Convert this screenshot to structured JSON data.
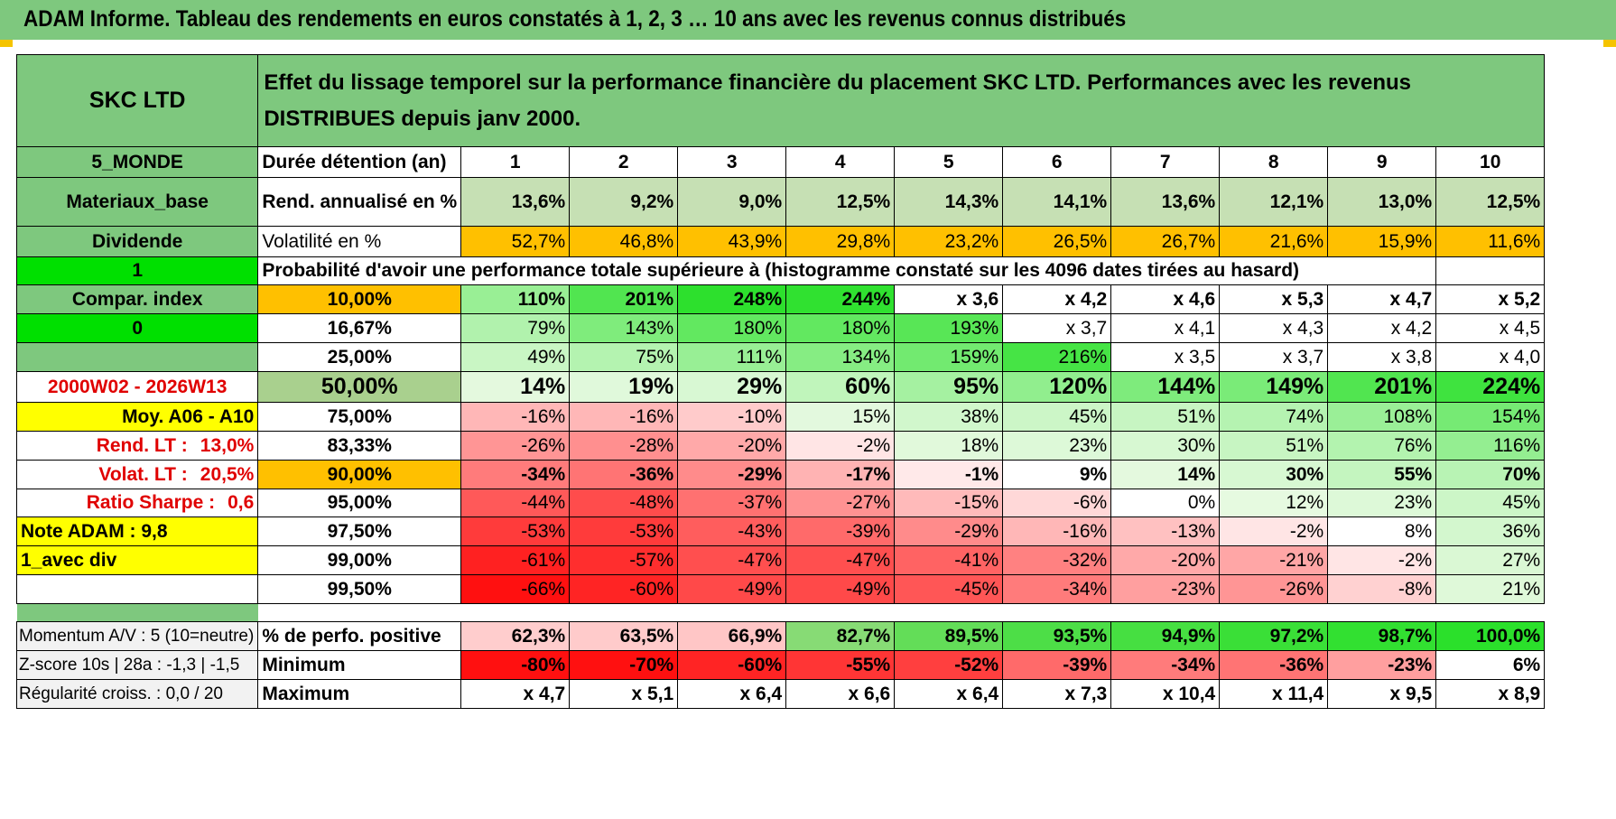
{
  "title": "ADAM Informe. Tableau des rendements en euros constatés à 1, 2, 3 … 10 ans avec les revenus connus distribués",
  "colors": {
    "green_header": "#7ec87e",
    "bright_green": "#00e000",
    "yellow": "#ffff00",
    "orange": "#ffc000",
    "red_text": "#e00000"
  },
  "header": {
    "fund": "SKC LTD",
    "description": "Effet du lissage temporel sur la performance financière du placement SKC LTD. Performances avec les revenus DISTRIBUES depuis janv 2000."
  },
  "left": {
    "zone": "5_MONDE",
    "sector": "Materiaux_base",
    "income": "Dividende",
    "flag1": "1",
    "compar": "Compar. index",
    "flag0": "0",
    "period": "2000W02 - 2026W13",
    "moy": "Moy. A06 - A10",
    "rend_lt_label": "Rend. LT :",
    "rend_lt_value": "13,0%",
    "volat_lt_label": "Volat. LT :",
    "volat_lt_value": "20,5%",
    "sharpe_label": "Ratio Sharpe :",
    "sharpe_value": "0,6",
    "note": "Note ADAM : 9,8",
    "avec_div": "1_avec div"
  },
  "rows_label": {
    "duree": "Durée détention (an)",
    "rend": "Rend. annualisé en %",
    "vol": "Volatilité en %",
    "proba": "Probabilité d'avoir une performance totale supérieure à (histogramme constaté sur les 4096 dates tirées au hasard)"
  },
  "years": [
    "1",
    "2",
    "3",
    "4",
    "5",
    "6",
    "7",
    "8",
    "9",
    "10"
  ],
  "rend": [
    "13,6%",
    "9,2%",
    "9,0%",
    "12,5%",
    "14,3%",
    "14,1%",
    "13,6%",
    "12,1%",
    "13,0%",
    "12,5%"
  ],
  "vol": [
    "52,7%",
    "46,8%",
    "43,9%",
    "29,8%",
    "23,2%",
    "26,5%",
    "26,7%",
    "21,6%",
    "15,9%",
    "11,6%"
  ],
  "prob_rows": [
    {
      "p": "10,00%",
      "v": [
        "110%",
        "201%",
        "248%",
        "244%",
        "x 3,6",
        "x 4,2",
        "x 4,6",
        "x 5,3",
        "x 4,7",
        "x 5,2"
      ]
    },
    {
      "p": "16,67%",
      "v": [
        "79%",
        "143%",
        "180%",
        "180%",
        "193%",
        "x 3,7",
        "x 4,1",
        "x 4,3",
        "x 4,2",
        "x 4,5"
      ]
    },
    {
      "p": "25,00%",
      "v": [
        "49%",
        "75%",
        "111%",
        "134%",
        "159%",
        "216%",
        "x 3,5",
        "x 3,7",
        "x 3,8",
        "x 4,0"
      ]
    },
    {
      "p": "50,00%",
      "v": [
        "14%",
        "19%",
        "29%",
        "60%",
        "95%",
        "120%",
        "144%",
        "149%",
        "201%",
        "224%"
      ]
    },
    {
      "p": "75,00%",
      "v": [
        "-16%",
        "-16%",
        "-10%",
        "15%",
        "38%",
        "45%",
        "51%",
        "74%",
        "108%",
        "154%"
      ]
    },
    {
      "p": "83,33%",
      "v": [
        "-26%",
        "-28%",
        "-20%",
        "-2%",
        "18%",
        "23%",
        "30%",
        "51%",
        "76%",
        "116%"
      ]
    },
    {
      "p": "90,00%",
      "v": [
        "-34%",
        "-36%",
        "-29%",
        "-17%",
        "-1%",
        "9%",
        "14%",
        "30%",
        "55%",
        "70%"
      ]
    },
    {
      "p": "95,00%",
      "v": [
        "-44%",
        "-48%",
        "-37%",
        "-27%",
        "-15%",
        "-6%",
        "0%",
        "12%",
        "23%",
        "45%"
      ]
    },
    {
      "p": "97,50%",
      "v": [
        "-53%",
        "-53%",
        "-43%",
        "-39%",
        "-29%",
        "-16%",
        "-13%",
        "-2%",
        "8%",
        "36%"
      ]
    },
    {
      "p": "99,00%",
      "v": [
        "-61%",
        "-57%",
        "-47%",
        "-47%",
        "-41%",
        "-32%",
        "-20%",
        "-21%",
        "-2%",
        "27%"
      ]
    },
    {
      "p": "99,50%",
      "v": [
        "-66%",
        "-60%",
        "-49%",
        "-49%",
        "-45%",
        "-34%",
        "-23%",
        "-26%",
        "-8%",
        "21%"
      ]
    }
  ],
  "bottom": {
    "momentum": "Momentum A/V : 5 (10=neutre)",
    "zscore": "Z-score 10s | 28a : -1,3 | -1,5",
    "regularite": "Régularité croiss. : 0,0 / 20",
    "pos_label": "% de perfo. positive",
    "min_label": "Minimum",
    "max_label": "Maximum",
    "pos": [
      "62,3%",
      "63,5%",
      "66,9%",
      "82,7%",
      "89,5%",
      "93,5%",
      "94,9%",
      "97,2%",
      "98,7%",
      "100,0%"
    ],
    "min": [
      "-80%",
      "-70%",
      "-60%",
      "-55%",
      "-52%",
      "-39%",
      "-34%",
      "-36%",
      "-23%",
      "6%"
    ],
    "max": [
      "x 4,7",
      "x 5,1",
      "x 6,4",
      "x 6,6",
      "x 6,4",
      "x 7,3",
      "x 10,4",
      "x 11,4",
      "x 9,5",
      "x 8,9"
    ]
  }
}
